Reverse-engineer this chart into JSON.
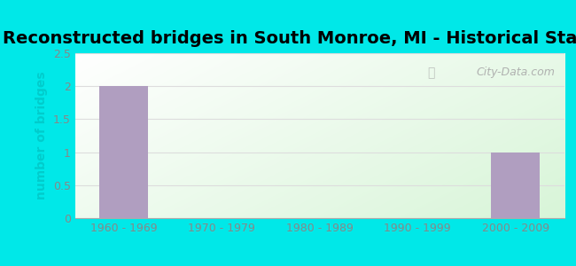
{
  "title": "Reconstructed bridges in South Monroe, MI - Historical Statistics",
  "categories": [
    "1960 - 1969",
    "1970 - 1979",
    "1980 - 1989",
    "1990 - 1999",
    "2000 - 2009"
  ],
  "values": [
    2,
    0,
    0,
    0,
    1
  ],
  "bar_color": "#b09ec0",
  "ylabel": "number of bridges",
  "ylim": [
    0,
    2.5
  ],
  "yticks": [
    0,
    0.5,
    1,
    1.5,
    2,
    2.5
  ],
  "background_outer": "#00e8e8",
  "title_fontsize": 14,
  "axis_label_fontsize": 10,
  "tick_fontsize": 9,
  "tick_color": "#888888",
  "ylabel_color": "#00cccc",
  "watermark": "City-Data.com",
  "grid_color": "#dddddd",
  "bar_width": 0.5
}
